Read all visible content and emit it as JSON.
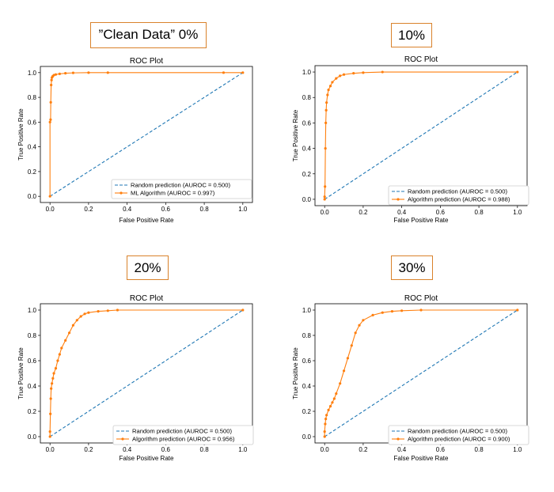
{
  "panels": [
    {
      "caption": "”Clean Data” 0%",
      "chart_data": {
        "type": "line",
        "title": "ROC Plot",
        "xlabel": "False Positive Rate",
        "ylabel": "True Positive Rate",
        "xlim": [
          -0.05,
          1.05
        ],
        "ylim": [
          -0.05,
          1.05
        ],
        "xticks": [
          "0.0",
          "0.2",
          "0.4",
          "0.6",
          "0.8",
          "1.0"
        ],
        "yticks": [
          "0.0",
          "0.2",
          "0.4",
          "0.6",
          "0.8",
          "1.0"
        ],
        "grid": false,
        "legend": "bottom-right",
        "series": [
          {
            "name": "Random prediction (AUROC = 0.500)",
            "color": "#1f77b4",
            "style": "dashed",
            "x": [
              0,
              1
            ],
            "y": [
              0,
              1
            ]
          },
          {
            "name": "ML Algorithm (AUROC = 0.997)",
            "color": "#ff7f0e",
            "style": "solid-markers",
            "x": [
              0,
              0,
              0.003,
              0.004,
              0.006,
              0.008,
              0.01,
              0.014,
              0.02,
              0.03,
              0.05,
              0.08,
              0.12,
              0.2,
              0.3,
              0.9,
              1.0
            ],
            "y": [
              0,
              0.6,
              0.62,
              0.76,
              0.9,
              0.94,
              0.96,
              0.97,
              0.98,
              0.985,
              0.99,
              0.995,
              0.998,
              1.0,
              1.0,
              1.0,
              1.0
            ]
          }
        ]
      }
    },
    {
      "caption": "10%",
      "chart_data": {
        "type": "line",
        "title": "ROC Plot",
        "xlabel": "False Positive Rate",
        "ylabel": "True Positive Rate",
        "xlim": [
          -0.05,
          1.05
        ],
        "ylim": [
          -0.05,
          1.05
        ],
        "xticks": [
          "0.0",
          "0.2",
          "0.4",
          "0.6",
          "0.8",
          "1.0"
        ],
        "yticks": [
          "0.0",
          "0.2",
          "0.4",
          "0.6",
          "0.8",
          "1.0"
        ],
        "grid": false,
        "legend": "bottom-right",
        "series": [
          {
            "name": "Random prediction (AUROC = 0.500)",
            "color": "#1f77b4",
            "style": "dashed",
            "x": [
              0,
              1
            ],
            "y": [
              0,
              1
            ]
          },
          {
            "name": "Algorithm prediction (AUROC = 0.988)",
            "color": "#ff7f0e",
            "style": "solid-markers",
            "x": [
              0,
              0,
              0.002,
              0.004,
              0.006,
              0.008,
              0.01,
              0.015,
              0.02,
              0.03,
              0.04,
              0.06,
              0.08,
              0.1,
              0.15,
              0.2,
              0.3,
              1.0
            ],
            "y": [
              0,
              0.02,
              0.1,
              0.4,
              0.6,
              0.7,
              0.76,
              0.82,
              0.86,
              0.89,
              0.92,
              0.95,
              0.97,
              0.98,
              0.99,
              0.995,
              1.0,
              1.0
            ]
          }
        ]
      }
    },
    {
      "caption": "20%",
      "chart_data": {
        "type": "line",
        "title": "ROC Plot",
        "xlabel": "False Positive Rate",
        "ylabel": "True Positive Rate",
        "xlim": [
          -0.05,
          1.05
        ],
        "ylim": [
          -0.05,
          1.05
        ],
        "xticks": [
          "0.0",
          "0.2",
          "0.4",
          "0.6",
          "0.8",
          "1.0"
        ],
        "yticks": [
          "0.0",
          "0.2",
          "0.4",
          "0.6",
          "0.8",
          "1.0"
        ],
        "grid": false,
        "legend": "bottom-right",
        "series": [
          {
            "name": "Random prediction (AUROC = 0.500)",
            "color": "#1f77b4",
            "style": "dashed",
            "x": [
              0,
              1
            ],
            "y": [
              0,
              1
            ]
          },
          {
            "name": "Algorithm prediction (AUROC = 0.956)",
            "color": "#ff7f0e",
            "style": "solid-markers",
            "x": [
              0,
              0,
              0.002,
              0.004,
              0.006,
              0.01,
              0.015,
              0.02,
              0.03,
              0.04,
              0.05,
              0.06,
              0.08,
              0.1,
              0.12,
              0.14,
              0.16,
              0.18,
              0.2,
              0.25,
              0.3,
              0.35,
              1.0
            ],
            "y": [
              0,
              0.04,
              0.18,
              0.3,
              0.38,
              0.42,
              0.46,
              0.5,
              0.54,
              0.6,
              0.65,
              0.7,
              0.76,
              0.82,
              0.88,
              0.92,
              0.95,
              0.97,
              0.98,
              0.99,
              0.995,
              1.0,
              1.0
            ]
          }
        ]
      }
    },
    {
      "caption": "30%",
      "chart_data": {
        "type": "line",
        "title": "ROC Plot",
        "xlabel": "False Positive Rate",
        "ylabel": "True Positive Rate",
        "xlim": [
          -0.05,
          1.05
        ],
        "ylim": [
          -0.05,
          1.05
        ],
        "xticks": [
          "0.0",
          "0.2",
          "0.4",
          "0.6",
          "0.8",
          "1.0"
        ],
        "yticks": [
          "0.0",
          "0.2",
          "0.4",
          "0.6",
          "0.8",
          "1.0"
        ],
        "grid": false,
        "legend": "bottom-right",
        "series": [
          {
            "name": "Random prediction (AUROC = 0.500)",
            "color": "#1f77b4",
            "style": "dashed",
            "x": [
              0,
              1
            ],
            "y": [
              0,
              1
            ]
          },
          {
            "name": "Algorithm prediction (AUROC = 0.900)",
            "color": "#ff7f0e",
            "style": "solid-markers",
            "x": [
              0,
              0,
              0.003,
              0.006,
              0.01,
              0.02,
              0.03,
              0.04,
              0.05,
              0.06,
              0.08,
              0.1,
              0.12,
              0.14,
              0.16,
              0.18,
              0.2,
              0.25,
              0.3,
              0.35,
              0.4,
              0.5,
              1.0
            ],
            "y": [
              0,
              0.04,
              0.1,
              0.14,
              0.17,
              0.21,
              0.24,
              0.27,
              0.3,
              0.34,
              0.42,
              0.52,
              0.62,
              0.72,
              0.82,
              0.88,
              0.92,
              0.96,
              0.98,
              0.99,
              0.995,
              1.0,
              1.0
            ]
          }
        ]
      }
    }
  ]
}
